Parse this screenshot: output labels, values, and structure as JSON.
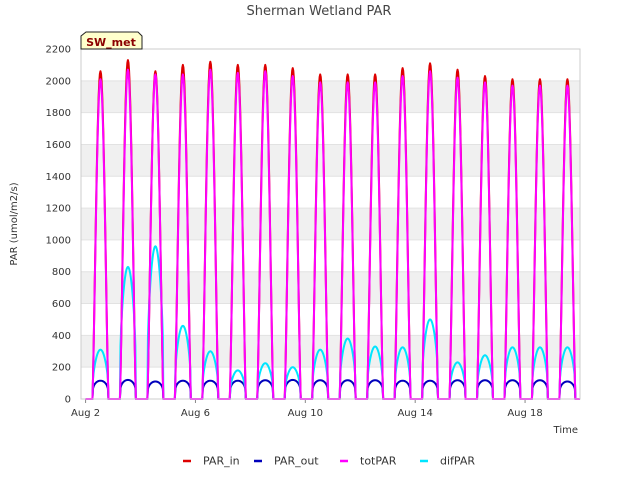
{
  "chart_data": {
    "type": "line",
    "title": "Sherman Wetland PAR",
    "site_tag": "SW_met",
    "xlabel": "Time",
    "ylabel": "PAR (umol/m2/s)",
    "ylim": [
      0,
      2200
    ],
    "yticks": [
      0,
      200,
      400,
      600,
      800,
      1000,
      1200,
      1400,
      1600,
      1800,
      2000,
      2200
    ],
    "xlim": [
      "2024-08-01T20:00",
      "2024-08-20T00:00"
    ],
    "xticks": [
      {
        "date": "2024-08-02",
        "label": "Aug 2"
      },
      {
        "date": "2024-08-06",
        "label": "Aug 6"
      },
      {
        "date": "2024-08-10",
        "label": "Aug 10"
      },
      {
        "date": "2024-08-14",
        "label": "Aug 14"
      },
      {
        "date": "2024-08-18",
        "label": "Aug 18"
      }
    ],
    "grid": "horizontal alternating bands",
    "legend_position": "bottom",
    "days": [
      "2024-08-02",
      "2024-08-03",
      "2024-08-04",
      "2024-08-05",
      "2024-08-06",
      "2024-08-07",
      "2024-08-08",
      "2024-08-09",
      "2024-08-10",
      "2024-08-11",
      "2024-08-12",
      "2024-08-13",
      "2024-08-14",
      "2024-08-15",
      "2024-08-16",
      "2024-08-17",
      "2024-08-18",
      "2024-08-19"
    ],
    "series": [
      {
        "name": "PAR_in",
        "color": "#dd0000",
        "daily_peak": [
          2060,
          2130,
          2060,
          2100,
          2120,
          2100,
          2100,
          2080,
          2040,
          2040,
          2040,
          2080,
          2110,
          2070,
          2030,
          2010,
          2010,
          2010
        ]
      },
      {
        "name": "PAR_out",
        "color": "#0000bb",
        "daily_peak": [
          115,
          120,
          110,
          115,
          115,
          115,
          118,
          120,
          118,
          118,
          118,
          115,
          115,
          118,
          118,
          118,
          118,
          110
        ]
      },
      {
        "name": "totPAR",
        "color": "#ff00ff",
        "daily_peak": [
          2010,
          2070,
          2040,
          2040,
          2070,
          2050,
          2060,
          2030,
          1990,
          1990,
          1990,
          2030,
          2060,
          2020,
          1990,
          1970,
          1970,
          1970
        ]
      },
      {
        "name": "difPAR",
        "color": "#00e5ff",
        "daily_peak": [
          310,
          830,
          960,
          460,
          300,
          180,
          225,
          200,
          310,
          380,
          330,
          325,
          500,
          230,
          275,
          325,
          325,
          325
        ]
      }
    ]
  }
}
